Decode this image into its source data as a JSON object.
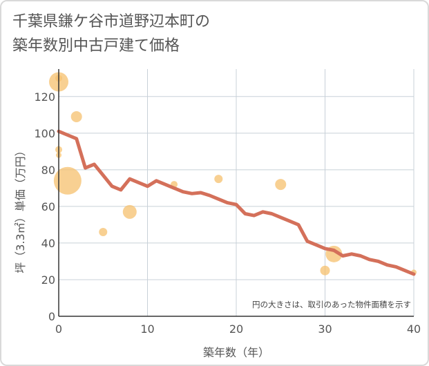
{
  "title": {
    "line1": "千葉県鎌ケ谷市道野辺本町の",
    "line2": "築年数別中古戸建て価格"
  },
  "chart_data": {
    "type": "scatter",
    "title": "千葉県鎌ケ谷市道野辺本町の築年数別中古戸建て価格",
    "xlabel": "築年数（年）",
    "ylabel": "坪（3.3㎡）単価（万円）",
    "xlim": [
      0,
      40
    ],
    "ylim": [
      0,
      135
    ],
    "xticks": [
      0,
      10,
      20,
      30,
      40
    ],
    "yticks": [
      0,
      20,
      40,
      60,
      80,
      100,
      120
    ],
    "grid": true,
    "annotation": "円の大きさは、取引のあった物件面積を示す",
    "colors": {
      "bubble": "#f5c06d",
      "line": "#d4705a",
      "grid": "#c8d0d8",
      "axis": "#333333"
    },
    "bubbles": [
      {
        "x": 0,
        "y": 128,
        "size": 14
      },
      {
        "x": 0,
        "y": 130,
        "size": 5
      },
      {
        "x": 0,
        "y": 91,
        "size": 5
      },
      {
        "x": 0,
        "y": 88,
        "size": 4
      },
      {
        "x": 1,
        "y": 74,
        "size": 20
      },
      {
        "x": 2,
        "y": 109,
        "size": 8
      },
      {
        "x": 5,
        "y": 46,
        "size": 6
      },
      {
        "x": 8,
        "y": 57,
        "size": 10
      },
      {
        "x": 13,
        "y": 72,
        "size": 5
      },
      {
        "x": 18,
        "y": 75,
        "size": 6
      },
      {
        "x": 25,
        "y": 72,
        "size": 8
      },
      {
        "x": 30,
        "y": 25,
        "size": 7
      },
      {
        "x": 31,
        "y": 34,
        "size": 12
      },
      {
        "x": 40,
        "y": 24,
        "size": 4
      }
    ],
    "trend": {
      "x": [
        0,
        1,
        2,
        3,
        4,
        5,
        6,
        7,
        8,
        9,
        10,
        11,
        12,
        13,
        14,
        15,
        16,
        17,
        18,
        19,
        20,
        21,
        22,
        23,
        24,
        25,
        26,
        27,
        28,
        29,
        30,
        31,
        32,
        33,
        34,
        35,
        36,
        37,
        38,
        39,
        40
      ],
      "y": [
        101,
        99,
        97,
        81,
        83,
        77,
        71,
        69,
        75,
        73,
        71,
        74,
        72,
        70,
        68,
        67,
        67.5,
        66,
        64,
        62,
        61,
        56,
        55,
        57,
        56,
        54,
        52,
        50,
        41,
        39,
        37,
        36,
        33,
        34,
        33,
        31,
        30,
        28,
        27,
        25,
        23
      ]
    }
  }
}
